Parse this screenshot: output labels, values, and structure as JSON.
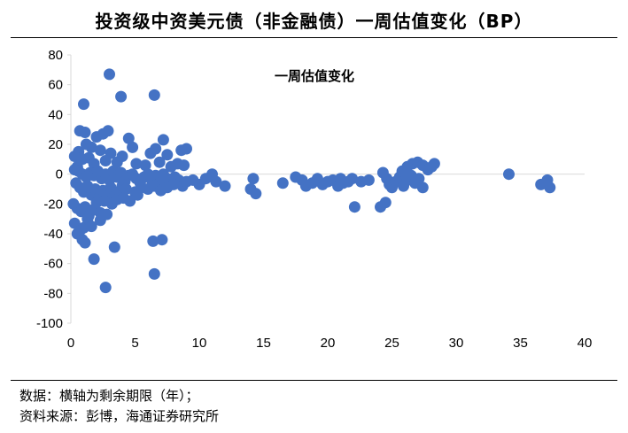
{
  "title": "投资级中资美元债（非金融债）一周估值变化（BP）",
  "notes": {
    "data": "数据：横轴为剩余期限（年）；",
    "source": "资料来源：彭博，海通证券研究所"
  },
  "chart_data": {
    "type": "scatter",
    "title": "一周估值变化",
    "xlabel": "",
    "ylabel": "",
    "xlim": [
      0,
      40
    ],
    "ylim": [
      -100,
      80
    ],
    "x_ticks": [
      0,
      5,
      10,
      15,
      20,
      25,
      30,
      35,
      40
    ],
    "y_ticks": [
      80,
      60,
      40,
      20,
      0,
      -20,
      -40,
      -60,
      -80,
      -100
    ],
    "grid": false,
    "marker_color": "#4472C4",
    "series": [
      {
        "name": "一周估值变化",
        "points": [
          [
            3.0,
            67
          ],
          [
            1.0,
            47
          ],
          [
            3.9,
            52
          ],
          [
            6.5,
            53
          ],
          [
            0.7,
            29
          ],
          [
            1.1,
            28
          ],
          [
            2.0,
            25
          ],
          [
            2.9,
            29
          ],
          [
            2.5,
            27
          ],
          [
            4.5,
            24
          ],
          [
            0.6,
            15
          ],
          [
            1.2,
            20
          ],
          [
            1.6,
            18
          ],
          [
            2.3,
            16
          ],
          [
            3.1,
            14
          ],
          [
            4.0,
            12
          ],
          [
            4.8,
            18
          ],
          [
            6.6,
            17
          ],
          [
            7.2,
            23
          ],
          [
            8.6,
            16
          ],
          [
            9.0,
            17
          ],
          [
            6.2,
            14
          ],
          [
            7.5,
            13
          ],
          [
            0.3,
            12
          ],
          [
            0.9,
            10
          ],
          [
            1.4,
            11
          ],
          [
            2.7,
            9
          ],
          [
            3.6,
            8
          ],
          [
            5.1,
            7
          ],
          [
            5.8,
            6
          ],
          [
            6.9,
            8
          ],
          [
            7.8,
            5
          ],
          [
            8.3,
            7
          ],
          [
            8.8,
            6
          ],
          [
            1.8,
            7
          ],
          [
            0.5,
            5
          ],
          [
            0.3,
            3
          ],
          [
            0.6,
            2
          ],
          [
            0.9,
            0
          ],
          [
            1.2,
            -2
          ],
          [
            1.5,
            1
          ],
          [
            1.8,
            -1
          ],
          [
            2.1,
            2
          ],
          [
            2.4,
            -3
          ],
          [
            2.7,
            0
          ],
          [
            3.0,
            -4
          ],
          [
            3.3,
            2
          ],
          [
            3.6,
            -2
          ],
          [
            3.9,
            1
          ],
          [
            4.2,
            -5
          ],
          [
            4.5,
            -1
          ],
          [
            4.8,
            0
          ],
          [
            5.1,
            -3
          ],
          [
            5.4,
            -6
          ],
          [
            5.7,
            -2
          ],
          [
            6.0,
            0
          ],
          [
            6.3,
            -4
          ],
          [
            6.6,
            -1
          ],
          [
            6.9,
            -6
          ],
          [
            7.2,
            0
          ],
          [
            7.5,
            -3
          ],
          [
            7.8,
            -7
          ],
          [
            8.1,
            -2
          ],
          [
            8.4,
            -4
          ],
          [
            8.7,
            -8
          ],
          [
            9.0,
            -5
          ],
          [
            0.4,
            -6
          ],
          [
            0.7,
            -9
          ],
          [
            1.0,
            -12
          ],
          [
            1.3,
            -8
          ],
          [
            1.6,
            -14
          ],
          [
            1.9,
            -10
          ],
          [
            2.2,
            -16
          ],
          [
            2.5,
            -11
          ],
          [
            2.8,
            -13
          ],
          [
            3.1,
            -9
          ],
          [
            3.4,
            -15
          ],
          [
            3.7,
            -12
          ],
          [
            4.0,
            -8
          ],
          [
            4.3,
            -10
          ],
          [
            5.0,
            -12
          ],
          [
            5.5,
            -9
          ],
          [
            6.0,
            -10
          ],
          [
            6.5,
            -8
          ],
          [
            7.0,
            -11
          ],
          [
            7.5,
            -9
          ],
          [
            8.0,
            -7
          ],
          [
            0.2,
            -20
          ],
          [
            0.5,
            -23
          ],
          [
            0.8,
            -25
          ],
          [
            1.1,
            -22
          ],
          [
            1.4,
            -28
          ],
          [
            1.7,
            -24
          ],
          [
            2.0,
            -19
          ],
          [
            2.3,
            -26
          ],
          [
            2.6,
            -18
          ],
          [
            3.2,
            -20
          ],
          [
            3.6,
            -17
          ],
          [
            4.1,
            -16
          ],
          [
            4.6,
            -18
          ],
          [
            5.2,
            -14
          ],
          [
            0.3,
            -33
          ],
          [
            0.7,
            -38
          ],
          [
            1.0,
            -36
          ],
          [
            1.3,
            -30
          ],
          [
            1.6,
            -35
          ],
          [
            2.3,
            -31
          ],
          [
            2.8,
            -27
          ],
          [
            0.5,
            -40
          ],
          [
            0.9,
            -44
          ],
          [
            1.1,
            -46
          ],
          [
            3.4,
            -49
          ],
          [
            6.4,
            -45
          ],
          [
            7.1,
            -44
          ],
          [
            1.8,
            -57
          ],
          [
            6.5,
            -67
          ],
          [
            2.7,
            -76
          ],
          [
            11.0,
            0
          ],
          [
            10.0,
            -7
          ],
          [
            11.3,
            -5
          ],
          [
            12.0,
            -8
          ],
          [
            10.5,
            -3
          ],
          [
            9.5,
            -4
          ],
          [
            14.2,
            -3
          ],
          [
            14.4,
            -13
          ],
          [
            14.0,
            -10
          ],
          [
            16.5,
            -6
          ],
          [
            17.5,
            -2
          ],
          [
            18.0,
            -4
          ],
          [
            18.3,
            -8
          ],
          [
            18.8,
            -6
          ],
          [
            19.2,
            -3
          ],
          [
            19.6,
            -7
          ],
          [
            20.0,
            -5
          ],
          [
            20.4,
            -4
          ],
          [
            20.8,
            -8
          ],
          [
            21.2,
            -6
          ],
          [
            21.0,
            -3
          ],
          [
            21.6,
            -5
          ],
          [
            21.9,
            -3
          ],
          [
            22.1,
            -22
          ],
          [
            22.6,
            -5
          ],
          [
            23.2,
            -4
          ],
          [
            24.1,
            -22
          ],
          [
            24.5,
            -19
          ],
          [
            24.3,
            1
          ],
          [
            24.6,
            -3
          ],
          [
            24.8,
            -7
          ],
          [
            25.0,
            -9
          ],
          [
            25.3,
            -5
          ],
          [
            25.6,
            -2
          ],
          [
            25.9,
            -8
          ],
          [
            26.2,
            -4
          ],
          [
            26.5,
            -1
          ],
          [
            26.8,
            -6
          ],
          [
            27.1,
            -3
          ],
          [
            27.4,
            -9
          ],
          [
            25.8,
            2
          ],
          [
            26.2,
            5
          ],
          [
            26.6,
            7
          ],
          [
            27.0,
            8
          ],
          [
            27.4,
            6
          ],
          [
            27.8,
            3
          ],
          [
            28.1,
            5
          ],
          [
            28.3,
            7
          ],
          [
            34.1,
            0
          ],
          [
            36.6,
            -7
          ],
          [
            37.1,
            -4
          ],
          [
            37.3,
            -9
          ]
        ]
      }
    ]
  }
}
